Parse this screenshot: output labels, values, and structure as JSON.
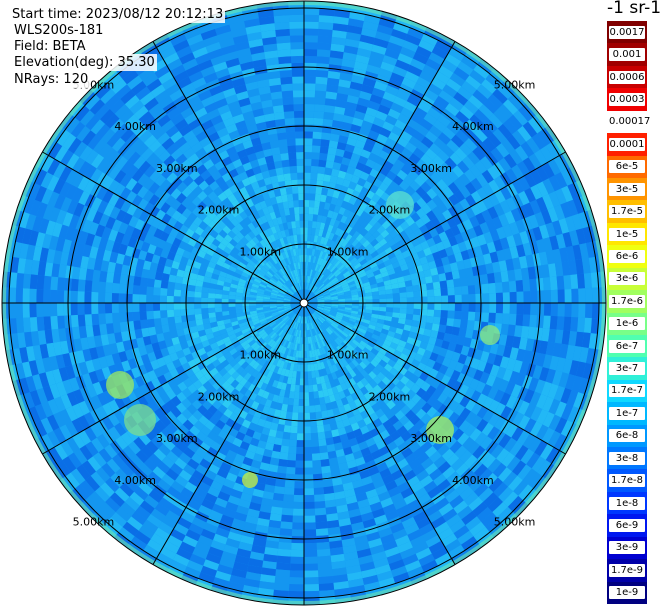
{
  "info": {
    "start_time": "Start time: 2023/08/12 20:12:13",
    "instrument": "WLS200s-181",
    "field": "Field: BETA",
    "elevation": "Elevation(deg): 35.30",
    "nrays": "NRays: 120"
  },
  "range_rings": [
    "1.00km",
    "2.00km",
    "3.00km",
    "4.00km",
    "5.00km"
  ],
  "colorbar": {
    "unit_label": "-1 sr-1",
    "ticks": [
      "0.0017",
      "0.001",
      "0.0006",
      "0.0003",
      "0.00017",
      "0.0001",
      "6e-5",
      "3e-5",
      "1.7e-5",
      "1e-5",
      "6e-6",
      "3e-6",
      "1.7e-6",
      "1e-6",
      "6e-7",
      "3e-7",
      "1.7e-7",
      "1e-7",
      "6e-8",
      "3e-8",
      "1.7e-8",
      "1e-8",
      "6e-9",
      "3e-9",
      "1.7e-9",
      "1e-9"
    ],
    "colors": [
      "#800000",
      "#a00000",
      "#c80000",
      "#f00000",
      "#ffffff",
      "#ff2000",
      "#ff6a00",
      "#ff9400",
      "#ffbe00",
      "#ffe600",
      "#f0ff10",
      "#c8ff38",
      "#a0ff60",
      "#78ff88",
      "#50ffb0",
      "#30f0d8",
      "#10d8ff",
      "#00b8ff",
      "#0098ff",
      "#0078ff",
      "#0058ff",
      "#0038ff",
      "#0018f0",
      "#0000d0",
      "#0000a8",
      "#000080"
    ]
  }
}
